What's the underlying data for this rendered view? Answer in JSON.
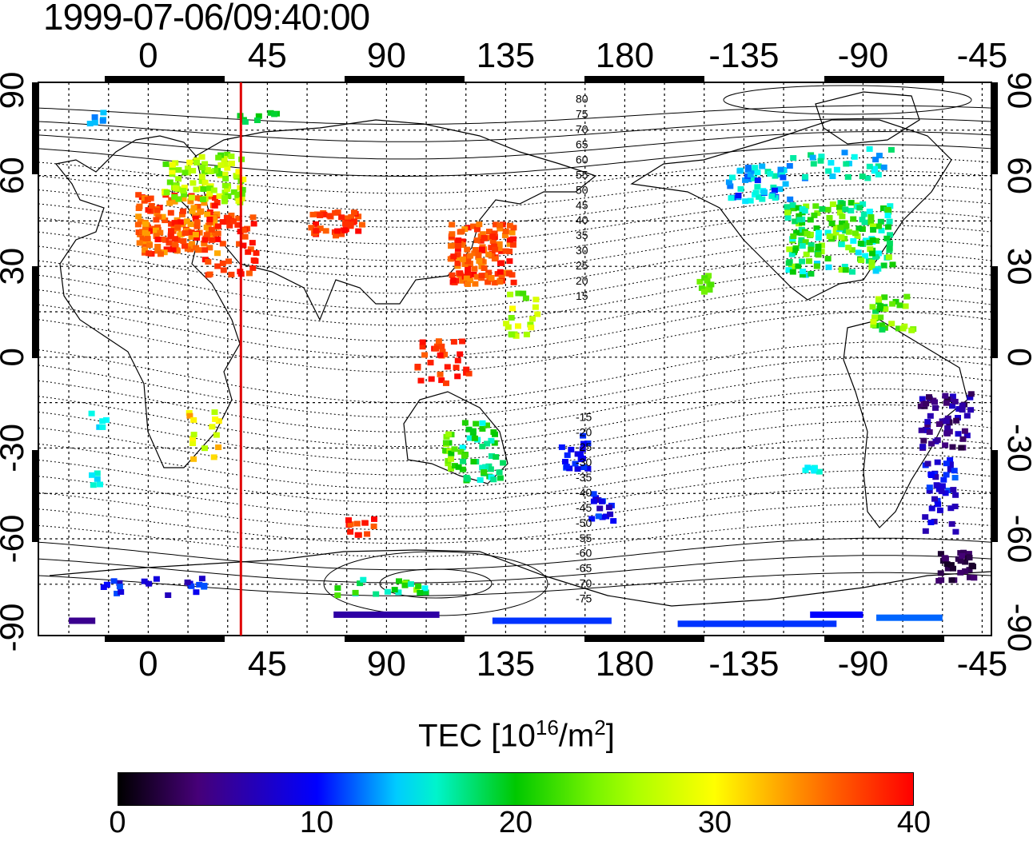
{
  "timestamp": "1999-07-06/09:40:00",
  "map": {
    "lon_ticks_top": [
      "0",
      "45",
      "90",
      "135",
      "180",
      "-135",
      "-90",
      "-45"
    ],
    "lon_ticks_bottom": [
      "0",
      "45",
      "90",
      "135",
      "180",
      "-135",
      "-90",
      "-45"
    ],
    "lat_ticks_left": [
      "90",
      "60",
      "30",
      "0",
      "-30",
      "-60",
      "-90"
    ],
    "lat_ticks_right": [
      "90",
      "60",
      "30",
      "0",
      "-30",
      "-60",
      "-90"
    ],
    "contour_labels": [
      "80",
      "75",
      "70",
      "65",
      "60",
      "55",
      "50",
      "45",
      "40",
      "35",
      "30",
      "25",
      "20",
      "15",
      "-15",
      "-20",
      "-25",
      "-30",
      "-35",
      "-40",
      "-45",
      "-50",
      "-55",
      "-60",
      "-65",
      "-70",
      "-75"
    ],
    "terminator_longitude": 35
  },
  "colorbar": {
    "title_prefix": "TEC  [10",
    "title_exp": "16",
    "title_mid": "/m",
    "title_exp2": "2",
    "title_suffix": "]",
    "min": 0,
    "max": 40,
    "ticks": [
      "0",
      "10",
      "20",
      "30",
      "40"
    ]
  },
  "colors": {
    "terminator": "#e00000",
    "frame": "#000000"
  }
}
